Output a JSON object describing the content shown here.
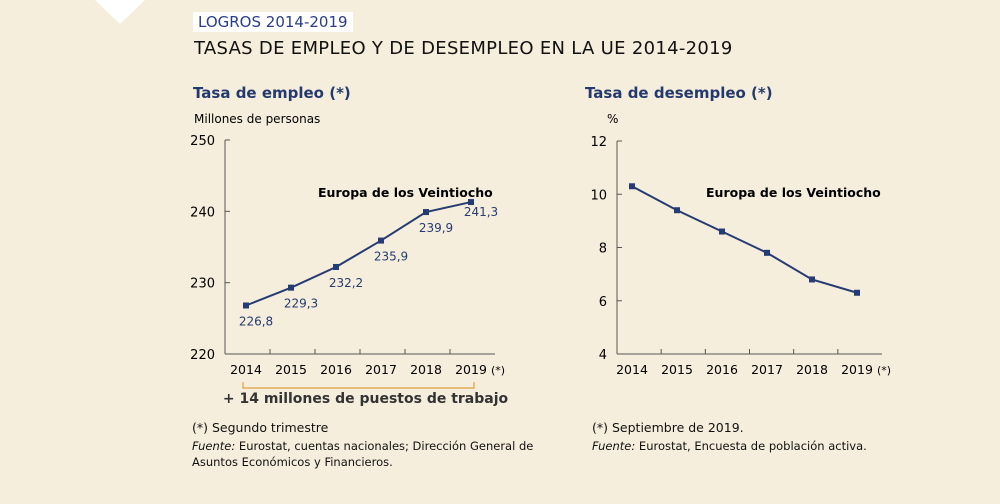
{
  "header": {
    "tag": "LOGROS 2014-2019",
    "title": "TASAS DE EMPLEO Y DE DESEMPLEO EN LA UE 2014-2019"
  },
  "colors": {
    "background": "#f6eedc",
    "series": "#253b73",
    "bracket": "#e0a040",
    "title_blue": "#243a6e"
  },
  "chart_data": [
    {
      "type": "line",
      "title": "Tasa de empleo (*)",
      "ylabel": "Millones de personas",
      "categories": [
        "2014",
        "2015",
        "2016",
        "2017",
        "2018",
        "2019"
      ],
      "x_suffix_last": "(*)",
      "yticks": [
        "220",
        "230",
        "240",
        "250"
      ],
      "ylim": [
        220,
        250
      ],
      "series": [
        {
          "name": "Europa de los Veintiocho",
          "values": [
            226.8,
            229.3,
            232.2,
            235.9,
            239.9,
            241.3
          ]
        }
      ],
      "data_labels": [
        "226,8",
        "229,3",
        "232,2",
        "235,9",
        "239,9",
        "241,3"
      ],
      "annotation": "+ 14 millones de puestos de trabajo",
      "footnote": "(*) Segundo trimestre",
      "source_label": "Fuente:",
      "source": "Eurostat, cuentas nacionales; Dirección General de Asuntos Económicos y Financieros."
    },
    {
      "type": "line",
      "title": "Tasa de desempleo (*)",
      "ylabel": "%",
      "categories": [
        "2014",
        "2015",
        "2016",
        "2017",
        "2018",
        "2019"
      ],
      "x_suffix_last": "(*)",
      "yticks": [
        "4",
        "6",
        "8",
        "10",
        "12"
      ],
      "ylim": [
        4,
        12
      ],
      "series": [
        {
          "name": "Europa de los Veintiocho",
          "values": [
            10.3,
            9.4,
            8.6,
            7.8,
            6.8,
            6.3
          ]
        }
      ],
      "footnote": "(*) Septiembre de 2019.",
      "source_label": "Fuente:",
      "source": "Eurostat, Encuesta de población activa."
    }
  ]
}
